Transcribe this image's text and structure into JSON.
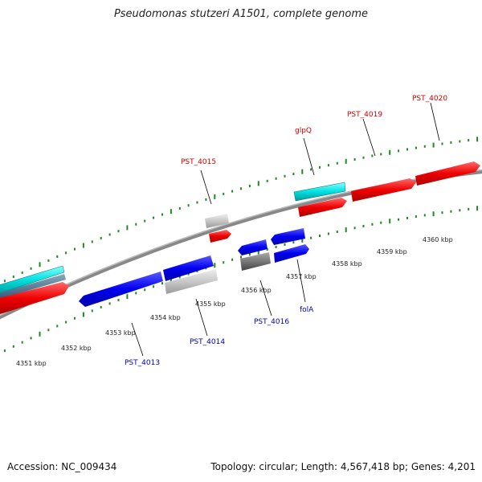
{
  "title": "Pseudomonas stutzeri A1501, complete genome",
  "footer": {
    "accession": "Accession: NC_009434",
    "summary": "Topology: circular; Length: 4,567,418 bp; Genes: 4,201"
  },
  "colors": {
    "forward": "#ff0000",
    "reverse": "#0000ee",
    "rna": "#00e0e0",
    "pseudo": "#c8c8c8",
    "other": "#777777",
    "backbone": "#888888",
    "tick": "#228822"
  },
  "tick_labels": [
    "4351 kbp",
    "4352 kbp",
    "4353 kbp",
    "4354 kbp",
    "4355 kbp",
    "4356 kbp",
    "4357 kbp",
    "4358 kbp",
    "4359 kbp",
    "4360 kbp"
  ],
  "gene_labels": [
    {
      "text": "PST_4015",
      "strand": "forward"
    },
    {
      "text": "glpQ",
      "strand": "forward"
    },
    {
      "text": "PST_4019",
      "strand": "forward"
    },
    {
      "text": "PST_4020",
      "strand": "forward"
    },
    {
      "text": "PST_4013",
      "strand": "reverse"
    },
    {
      "text": "PST_4014",
      "strand": "reverse"
    },
    {
      "text": "PST_4016",
      "strand": "reverse"
    },
    {
      "text": "folA",
      "strand": "reverse"
    }
  ]
}
